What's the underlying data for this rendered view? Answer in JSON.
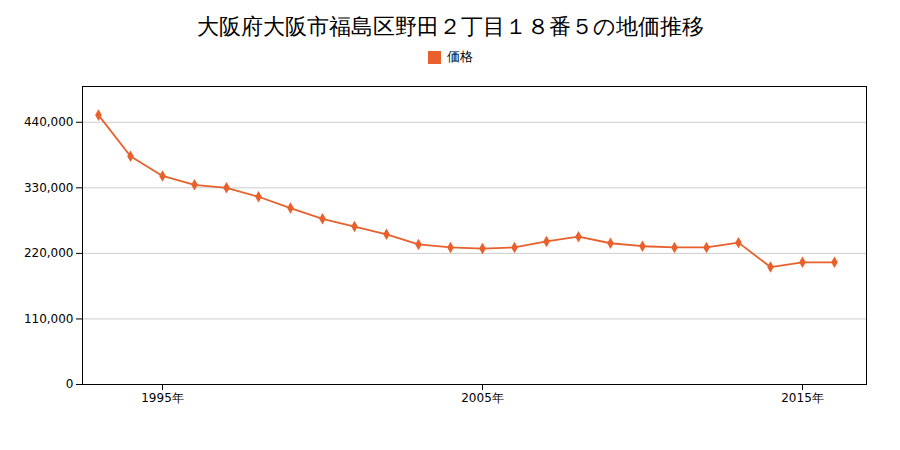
{
  "chart_data": {
    "type": "line",
    "title": "大阪府大阪市福島区野田２丁目１８番５の地価推移",
    "x": [
      1993,
      1994,
      1995,
      1996,
      1997,
      1998,
      1999,
      2000,
      2001,
      2002,
      2003,
      2004,
      2005,
      2006,
      2007,
      2008,
      2009,
      2010,
      2011,
      2012,
      2013,
      2014,
      2015,
      2016
    ],
    "series": [
      {
        "name": "価格",
        "color": "#E8612C",
        "marker": "diamond",
        "line_style": "solid",
        "values": [
          452000,
          383000,
          350000,
          335000,
          330000,
          315000,
          296000,
          278000,
          265000,
          252000,
          235000,
          230000,
          228000,
          230000,
          240000,
          248000,
          237000,
          232000,
          230000,
          230000,
          238000,
          197000,
          205000,
          205000
        ]
      }
    ],
    "xlim": [
      1992.5,
      2017
    ],
    "xticks": [
      {
        "value": 1995,
        "label": "1995年"
      },
      {
        "value": 2005,
        "label": "2005年"
      },
      {
        "value": 2015,
        "label": "2015年"
      }
    ],
    "ylim": [
      0,
      500000
    ],
    "yticks": [
      0,
      {
        "value": 110000,
        "label": "110,000"
      },
      {
        "value": 220000,
        "label": "220,000"
      },
      {
        "value": 330000,
        "label": "330,000"
      },
      {
        "value": 440000,
        "label": "440,000"
      }
    ],
    "grid": true,
    "legend": "top"
  }
}
